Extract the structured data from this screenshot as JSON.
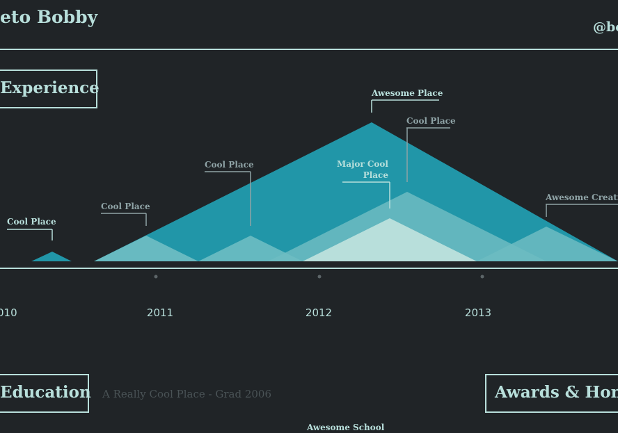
{
  "header": {
    "name": "eto Bobby",
    "handle": "@bo"
  },
  "sections": {
    "experience": "Experience",
    "education": "Education",
    "awards": "Awards & Honor"
  },
  "education": {
    "note": "A Really Cool Place - Grad 2006",
    "school": "Awesome School"
  },
  "timeline": {
    "years": [
      "010",
      "2011",
      "2012",
      "2013"
    ],
    "jobs": [
      {
        "label": [
          "Cool Place"
        ],
        "tone": "light"
      },
      {
        "label": [
          "Cool Place"
        ],
        "tone": "muted"
      },
      {
        "label": [
          "Cool Place"
        ],
        "tone": "muted"
      },
      {
        "label": [
          "Awesome Place"
        ],
        "tone": "light"
      },
      {
        "label": [
          "Major Cool",
          "Place"
        ],
        "tone": "light"
      },
      {
        "label": [
          "Cool Place"
        ],
        "tone": "muted"
      },
      {
        "label": [
          "Awesome Creati"
        ],
        "tone": "muted"
      }
    ]
  },
  "colors": {
    "background": "#202427",
    "accent_teal": "#2196a8",
    "light_teal": "#6dbcc2",
    "pale_teal": "#b8dfdb",
    "muted_text": "#8fa3a6"
  }
}
